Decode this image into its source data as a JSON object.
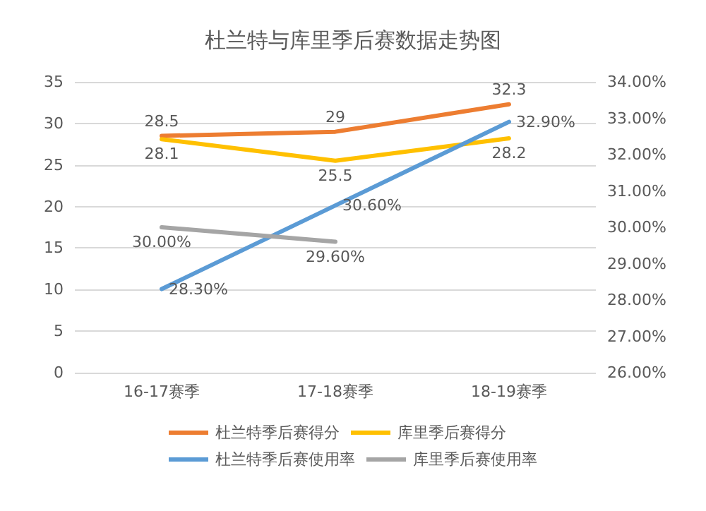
{
  "chart_data": {
    "type": "line",
    "title": "杜兰特与库里季后赛数据走势图",
    "categories": [
      "16-17赛季",
      "17-18赛季",
      "18-19赛季"
    ],
    "series": [
      {
        "name": "杜兰特季后赛得分",
        "color": "#ed7d31",
        "values": [
          28.5,
          29,
          32.3
        ],
        "value_labels": [
          "28.5",
          "29",
          "32.3"
        ]
      },
      {
        "name": "库里季后赛得分",
        "color": "#ffc000",
        "values": [
          28.1,
          25.5,
          28.2
        ],
        "value_labels": [
          "28.1",
          "25.5",
          "28.2"
        ]
      },
      {
        "name": "杜兰特季后赛使用率",
        "color": "#5b9bd5",
        "axis": "y2",
        "values": [
          28.3,
          30.6,
          32.9
        ],
        "value_labels": [
          "28.30%",
          "30.60%",
          "32.90%"
        ]
      },
      {
        "name": "库里季后赛使用率",
        "color": "#a5a5a5",
        "axis": "y2",
        "values": [
          30.0,
          29.6,
          null
        ],
        "value_labels": [
          "30.00%",
          "29.60%",
          null
        ]
      }
    ],
    "ylim": [
      0,
      35
    ],
    "yticks": [
      0,
      5,
      10,
      15,
      20,
      25,
      30,
      35
    ],
    "y2lim": [
      26,
      34
    ],
    "y2ticks": [
      {
        "value": 26,
        "label": "26.00%"
      },
      {
        "value": 27,
        "label": "27.00%"
      },
      {
        "value": 28,
        "label": "28.00%"
      },
      {
        "value": 29,
        "label": "29.00%"
      },
      {
        "value": 30,
        "label": "30.00%"
      },
      {
        "value": 31,
        "label": "31.00%"
      },
      {
        "value": 32,
        "label": "32.00%"
      },
      {
        "value": 33,
        "label": "33.00%"
      },
      {
        "value": 34,
        "label": "34.00%"
      }
    ],
    "grid": "y",
    "legend": "bottom",
    "marker": "none",
    "line_style": "solid"
  }
}
